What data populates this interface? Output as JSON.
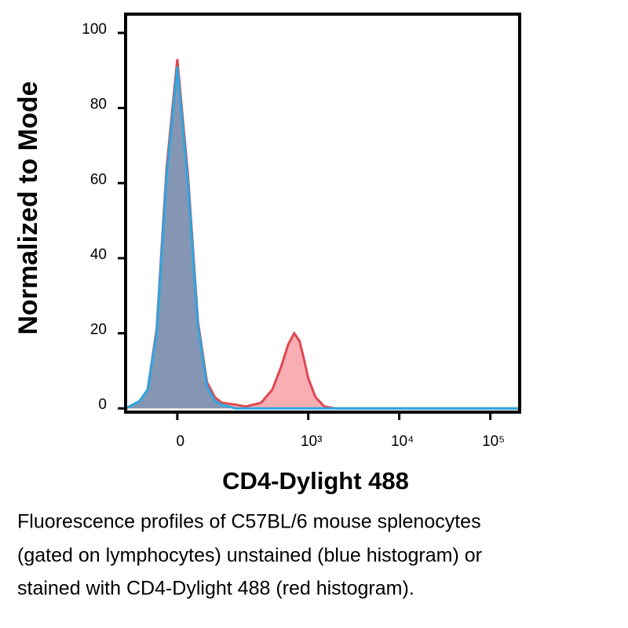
{
  "chart_data": {
    "type": "area",
    "ylabel": "Normalized to Mode",
    "xlabel": "CD4-Dylight 488",
    "caption": [
      "Fluorescence profiles of C57BL/6 mouse splenocytes",
      "(gated on lymphocytes) unstained (blue histogram) or",
      "stained with CD4-Dylight 488 (red histogram)."
    ],
    "xscale": "arcsinh",
    "xscale_cofactor": 73,
    "xlim": [
      -125,
      210000
    ],
    "xticks": [
      0,
      {
        "value": 1000,
        "label": "10³"
      },
      {
        "value": 10000,
        "label": "10⁴"
      },
      {
        "value": 100000,
        "label": "10⁵"
      }
    ],
    "ylim": [
      -1,
      105
    ],
    "yticks": [
      0,
      20,
      40,
      60,
      80,
      100
    ],
    "x": [
      -125,
      -100,
      -80,
      -60,
      -40,
      -20,
      0,
      20,
      40,
      60,
      80,
      100,
      150,
      200,
      300,
      400,
      500,
      600,
      700,
      800,
      900,
      1000,
      1200,
      1500,
      2000,
      5000,
      210000
    ],
    "series": [
      {
        "color": "#e0474f",
        "fill": "rgba(242,110,118,0.55)",
        "values": [
          0,
          1,
          2,
          5,
          21,
          64,
          93,
          62,
          23,
          7,
          3,
          1.5,
          1,
          0.5,
          1.5,
          5,
          11,
          17,
          20,
          18,
          13,
          8,
          3,
          0.5,
          0,
          0,
          0
        ]
      },
      {
        "color": "#2aa7e0",
        "fill": "rgba(95,140,180,0.75)",
        "values": [
          0,
          1,
          2,
          5,
          20,
          62,
          91,
          60,
          22,
          6,
          2,
          1,
          0,
          0,
          0,
          0,
          0,
          0,
          0,
          0,
          0,
          0,
          0,
          0,
          0,
          0,
          0
        ]
      }
    ]
  }
}
